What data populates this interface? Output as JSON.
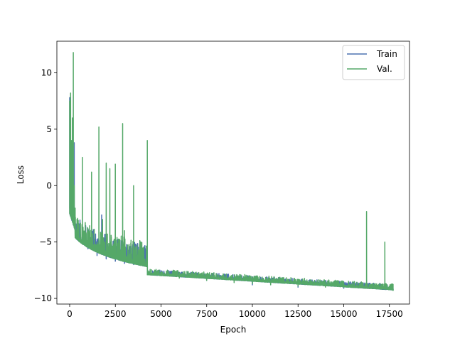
{
  "chart_data": {
    "type": "line",
    "xlabel": "Epoch",
    "ylabel": "Loss",
    "xlim": [
      -700,
      18600
    ],
    "ylim": [
      -10.5,
      12.8
    ],
    "xticks": [
      0,
      2500,
      5000,
      7500,
      10000,
      12500,
      15000,
      17500
    ],
    "xtick_labels": [
      "0",
      "2500",
      "5000",
      "7500",
      "10000",
      "12500",
      "15000",
      "17500"
    ],
    "yticks": [
      -10,
      -5,
      0,
      5,
      10
    ],
    "ytick_labels": [
      "−10",
      "−5",
      "0",
      "5",
      "10"
    ],
    "grid": false,
    "legend_position": "top-right",
    "series": [
      {
        "name": "Train",
        "color": "#4c72b0",
        "x": [
          0,
          20,
          50,
          100,
          150,
          200,
          250,
          300,
          350,
          400,
          500,
          700,
          1000,
          1500,
          1750,
          2000,
          2500,
          3000,
          3500,
          4000,
          4250,
          4300,
          5000,
          7500,
          10000,
          12500,
          15000,
          17500,
          17700
        ],
        "y": [
          7.8,
          2.0,
          0.5,
          -1.5,
          -2.2,
          -2.8,
          3.8,
          -3.0,
          -3.4,
          -3.7,
          -4.2,
          -5.0,
          -5.6,
          -6.2,
          -2.6,
          -6.5,
          -6.7,
          -6.9,
          -7.0,
          -7.1,
          -7.2,
          -7.6,
          -7.9,
          -8.4,
          -8.8,
          -9.0,
          -9.1,
          -9.2,
          -9.2
        ]
      },
      {
        "name": "Val.",
        "color": "#55a868",
        "x": [
          0,
          50,
          100,
          150,
          200,
          250,
          300,
          400,
          500,
          700,
          1000,
          1200,
          1500,
          1600,
          1800,
          2000,
          2200,
          2500,
          2900,
          3000,
          3500,
          4000,
          4250,
          4300,
          4500,
          5000,
          6000,
          7500,
          9000,
          10000,
          11000,
          12500,
          14000,
          15000,
          15500,
          16250,
          16300,
          17000,
          17250,
          17500,
          17700
        ],
        "y": [
          7.5,
          8.2,
          4.0,
          6.0,
          11.8,
          0.0,
          -2.0,
          -3.0,
          -3.5,
          2.5,
          -4.0,
          1.2,
          -5.0,
          5.2,
          -3.0,
          2.0,
          1.5,
          1.9,
          5.5,
          -4.0,
          0.0,
          -6.0,
          4.0,
          -7.8,
          -7.9,
          -8.0,
          -8.2,
          -8.4,
          -8.6,
          -8.7,
          -8.8,
          -8.9,
          -9.0,
          -9.0,
          -8.5,
          -2.3,
          -9.0,
          -9.1,
          -5.0,
          -9.2,
          -9.3
        ]
      }
    ]
  }
}
